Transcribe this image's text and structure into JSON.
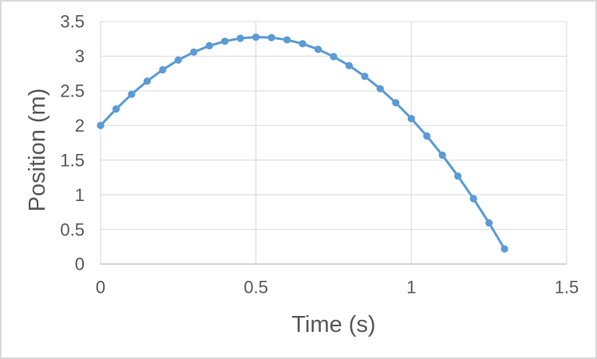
{
  "chart": {
    "style": {
      "background_color": "#FFFFFF",
      "frame_border_color": "#D9D9D9",
      "plot_border_color": "#D9D9D9",
      "gridline_color": "#D9D9D9",
      "axis_line_color": "#C6C6C6",
      "text_color": "#595959",
      "series_color": "#5B9BD5"
    }
  },
  "chart_data": {
    "type": "line",
    "title": "",
    "xlabel": "Time (s)",
    "ylabel": "Position (m)",
    "xlim": [
      0,
      1.5
    ],
    "ylim": [
      0,
      3.5
    ],
    "x_ticks": [
      0,
      0.5,
      1,
      1.5
    ],
    "x_tick_labels": [
      "0",
      "0.5",
      "1",
      "1.5"
    ],
    "y_ticks": [
      0,
      0.5,
      1,
      1.5,
      2,
      2.5,
      3,
      3.5
    ],
    "y_tick_labels": [
      "0",
      "0.5",
      "1",
      "1.5",
      "2",
      "2.5",
      "3",
      "3.5"
    ],
    "grid": true,
    "legend_position": "none",
    "markers": true,
    "marker_shape": "circle",
    "series": [
      {
        "name": "Position",
        "x": [
          0.0,
          0.05,
          0.1,
          0.15,
          0.2,
          0.25,
          0.3,
          0.35,
          0.4,
          0.45,
          0.5,
          0.55,
          0.6,
          0.65,
          0.7,
          0.75,
          0.8,
          0.85,
          0.9,
          0.95,
          1.0,
          1.05,
          1.1,
          1.15,
          1.2,
          1.25,
          1.3
        ],
        "y": [
          2.0,
          2.238,
          2.451,
          2.64,
          2.804,
          2.944,
          3.059,
          3.15,
          3.216,
          3.258,
          3.275,
          3.268,
          3.236,
          3.18,
          3.099,
          2.994,
          2.864,
          2.71,
          2.531,
          2.328,
          2.1,
          1.848,
          1.571,
          1.27,
          0.944,
          0.594,
          0.219
        ]
      }
    ]
  }
}
